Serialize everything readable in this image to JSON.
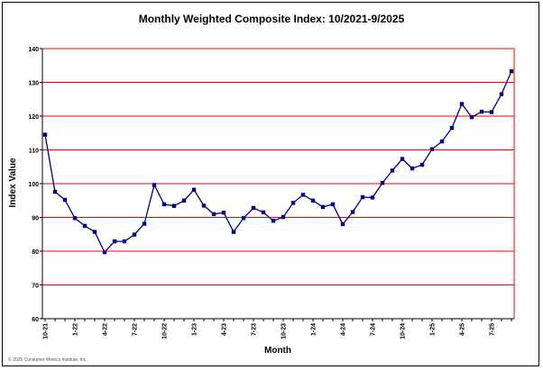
{
  "chart_data": {
    "type": "line",
    "title": "Monthly Weighted Composite Index: 10/2021-9/2025",
    "xlabel": "Month",
    "ylabel": "Index Value",
    "ylim": [
      60,
      140
    ],
    "yticks": [
      60,
      70,
      80,
      90,
      100,
      110,
      120,
      130,
      140
    ],
    "grid": true,
    "legend": "none",
    "colors": {
      "line": "#000080",
      "marker": "#000080",
      "grid": "#ff0000",
      "axis": "#000000"
    },
    "x": [
      "10-21",
      "11-21",
      "12-21",
      "1-22",
      "2-22",
      "3-22",
      "4-22",
      "5-22",
      "6-22",
      "7-22",
      "8-22",
      "9-22",
      "10-22",
      "11-22",
      "12-22",
      "1-23",
      "2-23",
      "3-23",
      "4-23",
      "5-23",
      "6-23",
      "7-23",
      "8-23",
      "9-23",
      "10-23",
      "11-23",
      "12-23",
      "1-24",
      "2-24",
      "3-24",
      "4-24",
      "5-24",
      "6-24",
      "7-24",
      "8-24",
      "9-24",
      "10-24",
      "11-24",
      "12-24",
      "1-25",
      "2-25",
      "3-25",
      "4-25",
      "5-25",
      "6-25",
      "7-25",
      "8-25",
      "9-25"
    ],
    "xtick_labels": [
      {
        "index": 0,
        "label": "10-21"
      },
      {
        "index": 3,
        "label": "1-22"
      },
      {
        "index": 6,
        "label": "4-22"
      },
      {
        "index": 9,
        "label": "7-22"
      },
      {
        "index": 12,
        "label": "10-22"
      },
      {
        "index": 15,
        "label": "1-23"
      },
      {
        "index": 18,
        "label": "4-23"
      },
      {
        "index": 21,
        "label": "7-23"
      },
      {
        "index": 24,
        "label": "10-23"
      },
      {
        "index": 27,
        "label": "1-24"
      },
      {
        "index": 30,
        "label": "4-24"
      },
      {
        "index": 33,
        "label": "7-24"
      },
      {
        "index": 36,
        "label": "10-24"
      },
      {
        "index": 39,
        "label": "1-25"
      },
      {
        "index": 42,
        "label": "4-25"
      },
      {
        "index": 45,
        "label": "7-25"
      }
    ],
    "series": [
      {
        "values": [
          114.5,
          97.6,
          95.2,
          89.8,
          87.5,
          85.7,
          79.7,
          82.9,
          82.9,
          84.9,
          88.1,
          99.6,
          93.9,
          93.4,
          95.0,
          98.2,
          93.5,
          91.0,
          91.4,
          85.7,
          89.8,
          92.8,
          91.5,
          89.0,
          90.1,
          94.3,
          96.7,
          95.0,
          93.1,
          93.9,
          88.0,
          91.6,
          96.0,
          95.9,
          100.2,
          103.9,
          107.3,
          104.5,
          105.6,
          110.2,
          112.5,
          116.5,
          123.6,
          119.7,
          121.3,
          121.2,
          126.5,
          133.3
        ]
      }
    ]
  },
  "footer": {
    "copyright": "© 2025 Consumer Metrics Institute, Inc."
  }
}
